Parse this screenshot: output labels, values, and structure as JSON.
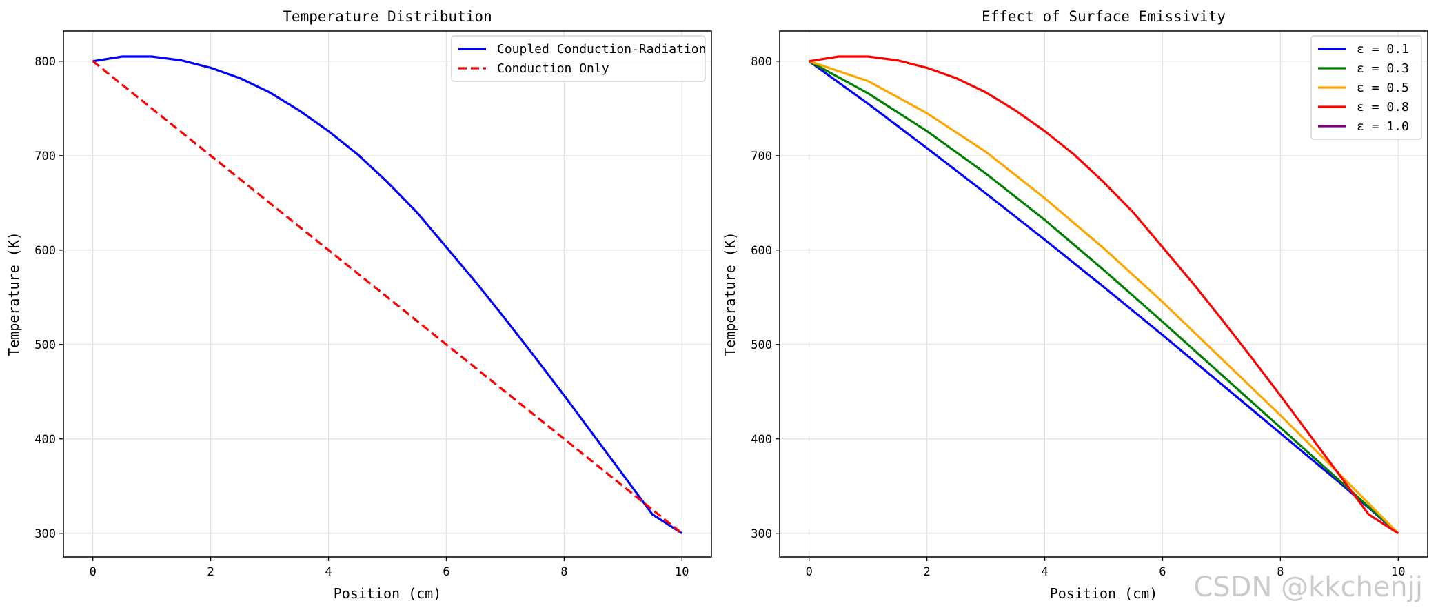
{
  "chart_data": [
    {
      "type": "line",
      "title": "Temperature Distribution",
      "xlabel": "Position (cm)",
      "ylabel": "Temperature (K)",
      "xlim": [
        -0.5,
        10.5
      ],
      "ylim": [
        275,
        832
      ],
      "xticks": [
        0,
        2,
        4,
        6,
        8,
        10
      ],
      "yticks": [
        300,
        400,
        500,
        600,
        700,
        800
      ],
      "grid": true,
      "legend_position": "top-right",
      "series": [
        {
          "name": "Coupled Conduction-Radiation",
          "color": "#0000ff",
          "dash": "solid",
          "x": [
            0,
            0.5,
            1,
            1.5,
            2,
            2.5,
            3,
            3.5,
            4,
            4.5,
            5,
            5.5,
            6,
            6.5,
            7,
            7.5,
            8,
            8.5,
            9,
            9.5,
            10
          ],
          "y": [
            800,
            805,
            805,
            801,
            793,
            782,
            767,
            748,
            726,
            701,
            672,
            640,
            603,
            566,
            527,
            487,
            446,
            404,
            362,
            320,
            300
          ]
        },
        {
          "name": "Conduction Only",
          "color": "#ff0000",
          "dash": "dashed",
          "x": [
            0,
            10
          ],
          "y": [
            800,
            300
          ]
        }
      ]
    },
    {
      "type": "line",
      "title": "Effect of Surface Emissivity",
      "xlabel": "Position (cm)",
      "ylabel": "Temperature (K)",
      "xlim": [
        -0.5,
        10.5
      ],
      "ylim": [
        275,
        832
      ],
      "xticks": [
        0,
        2,
        4,
        6,
        8,
        10
      ],
      "yticks": [
        300,
        400,
        500,
        600,
        700,
        800
      ],
      "grid": true,
      "legend_position": "top-right",
      "series": [
        {
          "name": "ε = 0.1",
          "color": "#0000ff",
          "dash": "solid",
          "x": [
            0,
            1,
            2,
            3,
            4,
            5,
            6,
            7,
            8,
            9,
            10
          ],
          "y": [
            800,
            755,
            708,
            660,
            611,
            561,
            510,
            458,
            406,
            354,
            300
          ]
        },
        {
          "name": "ε = 0.3",
          "color": "#008000",
          "dash": "solid",
          "x": [
            0,
            1,
            2,
            3,
            4,
            5,
            6,
            7,
            8,
            9,
            10
          ],
          "y": [
            800,
            766,
            726,
            681,
            632,
            579,
            524,
            468,
            412,
            356,
            300
          ]
        },
        {
          "name": "ε = 0.5",
          "color": "#ffa500",
          "dash": "solid",
          "x": [
            0,
            1,
            2,
            3,
            4,
            5,
            6,
            7,
            8,
            9,
            10
          ],
          "y": [
            800,
            779,
            745,
            704,
            655,
            602,
            545,
            485,
            425,
            363,
            300
          ]
        },
        {
          "name": "ε = 0.8",
          "color": "#ff0000",
          "dash": "solid",
          "x": [
            0,
            0.5,
            1,
            1.5,
            2,
            2.5,
            3,
            3.5,
            4,
            4.5,
            5,
            5.5,
            6,
            6.5,
            7,
            7.5,
            8,
            8.5,
            9,
            9.5,
            10
          ],
          "y": [
            800,
            805,
            805,
            801,
            793,
            782,
            767,
            748,
            726,
            701,
            672,
            640,
            603,
            566,
            527,
            487,
            446,
            404,
            362,
            320,
            300
          ]
        },
        {
          "name": "ε = 1.0",
          "color": "#800080",
          "dash": "solid",
          "x": [
            0,
            10
          ],
          "y": [
            800,
            300
          ],
          "hidden": true
        }
      ]
    }
  ],
  "watermark": "CSDN @kkchenjj"
}
